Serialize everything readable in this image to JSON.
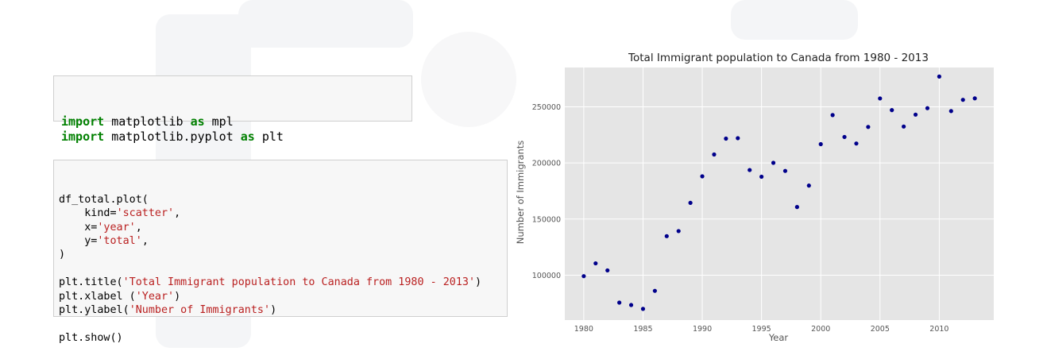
{
  "colors": {
    "keyword": "#008000",
    "string": "#ba2121",
    "plot_background": "#e5e5e5",
    "marker": "#00008b"
  },
  "notebook": {
    "import_cell": [
      [
        {
          "t": "import",
          "k": "kw"
        },
        {
          "t": " matplotlib "
        },
        {
          "t": "as",
          "k": "kw"
        },
        {
          "t": " mpl"
        }
      ],
      [
        {
          "t": "import",
          "k": "kw"
        },
        {
          "t": " matplotlib.pyplot "
        },
        {
          "t": "as",
          "k": "kw"
        },
        {
          "t": " plt"
        }
      ]
    ],
    "plot_cell": [
      [
        {
          "t": "df_total.plot("
        }
      ],
      [
        {
          "t": "    kind="
        },
        {
          "t": "'scatter'",
          "k": "str"
        },
        {
          "t": ","
        }
      ],
      [
        {
          "t": "    x="
        },
        {
          "t": "'year'",
          "k": "str"
        },
        {
          "t": ","
        }
      ],
      [
        {
          "t": "    y="
        },
        {
          "t": "'total'",
          "k": "str"
        },
        {
          "t": ","
        }
      ],
      [
        {
          "t": ")"
        }
      ],
      [
        {
          "t": ""
        }
      ],
      [
        {
          "t": "plt.title("
        },
        {
          "t": "'Total Immigrant population to Canada from 1980 - 2013'",
          "k": "str"
        },
        {
          "t": ")"
        }
      ],
      [
        {
          "t": "plt.xlabel ("
        },
        {
          "t": "'Year'",
          "k": "str"
        },
        {
          "t": ")"
        }
      ],
      [
        {
          "t": "plt.ylabel("
        },
        {
          "t": "'Number of Immigrants'",
          "k": "str"
        },
        {
          "t": ")"
        }
      ],
      [
        {
          "t": ""
        }
      ],
      [
        {
          "t": "plt.show()"
        }
      ]
    ]
  },
  "chart_data": {
    "type": "scatter",
    "title": "Total Immigrant population to Canada from 1980 - 2013",
    "xlabel": "Year",
    "ylabel": "Number of Immigrants",
    "xlim": [
      1978.4,
      2014.6
    ],
    "ylim": [
      60000,
      285000
    ],
    "xticks": [
      1980,
      1985,
      1990,
      1995,
      2000,
      2005,
      2010
    ],
    "yticks": [
      100000,
      150000,
      200000,
      250000
    ],
    "grid": true,
    "x": [
      1980,
      1981,
      1982,
      1983,
      1984,
      1985,
      1986,
      1987,
      1988,
      1989,
      1990,
      1991,
      1992,
      1993,
      1994,
      1995,
      1996,
      1997,
      1998,
      1999,
      2000,
      2001,
      2002,
      2003,
      2004,
      2005,
      2006,
      2007,
      2008,
      2009,
      2010,
      2011,
      2012,
      2013
    ],
    "y": [
      99137,
      110563,
      104271,
      75550,
      73417,
      69978,
      86048,
      134771,
      139306,
      164432,
      188054,
      207509,
      221687,
      222049,
      193665,
      187712,
      200085,
      192885,
      160727,
      179818,
      216712,
      242643,
      223111,
      217297,
      232083,
      257457,
      247057,
      232405,
      243047,
      248768,
      276956,
      246194,
      256222,
      257537
    ]
  }
}
